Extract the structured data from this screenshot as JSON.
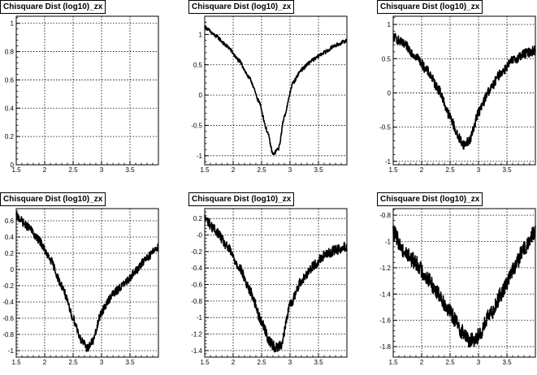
{
  "colors": {
    "background": "#ffffff",
    "frame": "#000000",
    "grid": "#000000",
    "trace": "#000000"
  },
  "chart_data": [
    {
      "type": "line",
      "title": "Chisquare Dist (log10)_zx",
      "xlim": [
        1.5,
        4.0
      ],
      "ylim": [
        0,
        1.05
      ],
      "xticks": [
        1.5,
        2,
        2.5,
        3,
        3.5
      ],
      "xtick_labels": [
        "1.5",
        "2",
        "2.5",
        "3",
        "3.5"
      ],
      "yticks": [
        0,
        0.2,
        0.4,
        0.6,
        0.8,
        1
      ],
      "ytick_labels": [
        "0",
        "0.2",
        "0.4",
        "0.6",
        "0.8",
        "1"
      ],
      "grid": true,
      "x": [],
      "y": []
    },
    {
      "type": "line",
      "title": "Chisquare Dist (log10)_zx",
      "xlim": [
        1.5,
        4.0
      ],
      "ylim": [
        -1.15,
        1.3
      ],
      "xticks": [
        1.5,
        2,
        2.5,
        3,
        3.5
      ],
      "xtick_labels": [
        "1.5",
        "2",
        "2.5",
        "3",
        "3.5"
      ],
      "yticks": [
        -1,
        -0.5,
        0,
        0.5,
        1
      ],
      "ytick_labels": [
        "-1",
        "-0.5",
        "0",
        "0.5",
        "1"
      ],
      "grid": true,
      "noise": 0.03,
      "x": [
        1.5,
        1.7,
        1.9,
        2.1,
        2.3,
        2.45,
        2.6,
        2.7,
        2.8,
        2.9,
        3.05,
        3.2,
        3.4,
        3.6,
        3.8,
        4.0
      ],
      "y": [
        1.12,
        0.97,
        0.8,
        0.57,
        0.26,
        -0.1,
        -0.6,
        -0.98,
        -0.88,
        -0.35,
        0.2,
        0.42,
        0.58,
        0.7,
        0.82,
        0.9
      ]
    },
    {
      "type": "line",
      "title": "Chisquare Dist (log10)_zx",
      "xlim": [
        1.5,
        4.0
      ],
      "ylim": [
        -1.05,
        1.12
      ],
      "xticks": [
        1.5,
        2,
        2.5,
        3,
        3.5
      ],
      "xtick_labels": [
        "1.5",
        "2",
        "2.5",
        "3",
        "3.5"
      ],
      "yticks": [
        -1,
        -0.5,
        0,
        0.5,
        1
      ],
      "ytick_labels": [
        "-1",
        "-0.5",
        "0",
        "0.5",
        "1"
      ],
      "grid": true,
      "noise": 0.07,
      "x": [
        1.5,
        1.7,
        1.9,
        2.1,
        2.3,
        2.5,
        2.65,
        2.75,
        2.85,
        3.0,
        3.2,
        3.4,
        3.6,
        3.8,
        4.0
      ],
      "y": [
        0.82,
        0.7,
        0.54,
        0.32,
        0.05,
        -0.35,
        -0.65,
        -0.76,
        -0.68,
        -0.28,
        0.05,
        0.3,
        0.47,
        0.57,
        0.62
      ]
    },
    {
      "type": "line",
      "title": "Chisquare Dist (log10)_zx",
      "xlim": [
        1.5,
        4.0
      ],
      "ylim": [
        -1.08,
        0.75
      ],
      "xticks": [
        1.5,
        2,
        2.5,
        3,
        3.5
      ],
      "xtick_labels": [
        "1.5",
        "2",
        "2.5",
        "3",
        "3.5"
      ],
      "yticks": [
        -1,
        -0.8,
        -0.6,
        -0.4,
        -0.2,
        0,
        0.2,
        0.4,
        0.6
      ],
      "ytick_labels": [
        "-1",
        "-0.8",
        "-0.6",
        "-0.4",
        "-0.2",
        "0",
        "0.2",
        "0.4",
        "0.6"
      ],
      "grid": true,
      "noise": 0.05,
      "x": [
        1.5,
        1.7,
        1.9,
        2.1,
        2.3,
        2.5,
        2.65,
        2.75,
        2.85,
        3.0,
        3.2,
        3.4,
        3.6,
        3.8,
        4.0
      ],
      "y": [
        0.66,
        0.53,
        0.36,
        0.12,
        -0.2,
        -0.6,
        -0.88,
        -0.97,
        -0.88,
        -0.52,
        -0.3,
        -0.18,
        -0.02,
        0.15,
        0.28
      ]
    },
    {
      "type": "line",
      "title": "Chisquare Dist (log10)_zx",
      "xlim": [
        1.5,
        4.0
      ],
      "ylim": [
        -1.48,
        0.32
      ],
      "xticks": [
        1.5,
        2,
        2.5,
        3,
        3.5
      ],
      "xtick_labels": [
        "1.5",
        "2",
        "2.5",
        "3",
        "3.5"
      ],
      "yticks": [
        -1.4,
        -1.2,
        -1,
        -0.8,
        -0.6,
        -0.4,
        -0.2,
        0,
        0.2
      ],
      "ytick_labels": [
        "-1.4",
        "-1.2",
        "-1",
        "-0.8",
        "-0.6",
        "-0.4",
        "-0.2",
        "-0",
        "0.2"
      ],
      "grid": true,
      "noise": 0.06,
      "x": [
        1.5,
        1.7,
        1.9,
        2.1,
        2.3,
        2.5,
        2.65,
        2.75,
        2.85,
        3.0,
        3.2,
        3.4,
        3.6,
        3.8,
        4.0
      ],
      "y": [
        0.2,
        0.05,
        -0.15,
        -0.38,
        -0.68,
        -1.05,
        -1.3,
        -1.37,
        -1.32,
        -0.85,
        -0.55,
        -0.38,
        -0.25,
        -0.18,
        -0.14
      ]
    },
    {
      "type": "line",
      "title": "Chisquare Dist (log10)_zx",
      "xlim": [
        1.5,
        4.0
      ],
      "ylim": [
        -1.88,
        -0.75
      ],
      "xticks": [
        1.5,
        2,
        2.5,
        3,
        3.5
      ],
      "xtick_labels": [
        "1.5",
        "2",
        "2.5",
        "3",
        "3.5"
      ],
      "yticks": [
        -1.8,
        -1.6,
        -1.4,
        -1.2,
        -1,
        -0.8
      ],
      "ytick_labels": [
        "-1.8",
        "-1.6",
        "-1.4",
        "-1.2",
        "-1",
        "-0.8"
      ],
      "grid": true,
      "noise": 0.06,
      "x": [
        1.5,
        1.7,
        1.9,
        2.1,
        2.3,
        2.5,
        2.7,
        2.85,
        3.0,
        3.2,
        3.4,
        3.6,
        3.8,
        4.0
      ],
      "y": [
        -0.93,
        -1.08,
        -1.16,
        -1.28,
        -1.4,
        -1.54,
        -1.68,
        -1.76,
        -1.72,
        -1.56,
        -1.4,
        -1.22,
        -1.06,
        -0.92
      ]
    }
  ]
}
